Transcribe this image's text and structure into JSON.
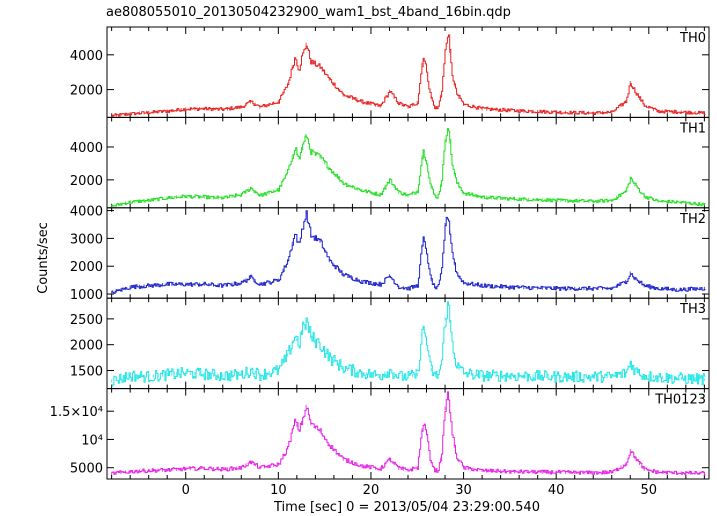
{
  "chart_data": {
    "type": "line",
    "title": "ae808055010_20130504232900_wam1_bst_4band_16bin.qdp",
    "xlabel": "Time [sec] 0 = 2013/05/04 23:29:00.540",
    "ylabel": "Counts/sec",
    "xlim": [
      -8.5,
      56.5
    ],
    "x_ticks": [
      0,
      10,
      20,
      30,
      40,
      50
    ],
    "x_tick_labels": [
      "0",
      "10",
      "20",
      "30",
      "40",
      "50"
    ],
    "panels": [
      {
        "name": "TH0",
        "color": "#e8201f",
        "ylim": [
          400,
          5600
        ],
        "y_ticks": [
          2000,
          4000
        ],
        "y_tick_labels": [
          "2000",
          "4000"
        ],
        "x": [
          -8,
          -6,
          -4,
          -2,
          0,
          2,
          4,
          6,
          7,
          8,
          10,
          11,
          11.8,
          12.2,
          12.5,
          13,
          13.5,
          14.5,
          15.5,
          17,
          19,
          21,
          22,
          23,
          24,
          25,
          25.6,
          26,
          26.3,
          26.8,
          27.2,
          27.6,
          28,
          28.3,
          28.7,
          29.2,
          30,
          32,
          35,
          40,
          44,
          46,
          47.5,
          48,
          48.5,
          49.5,
          51,
          53,
          56
        ],
        "values": [
          500,
          600,
          680,
          760,
          880,
          900,
          860,
          1000,
          1300,
          1000,
          1300,
          2300,
          3900,
          3100,
          3850,
          4600,
          3600,
          3300,
          2600,
          1700,
          1300,
          1050,
          1900,
          1200,
          1000,
          1250,
          3900,
          3100,
          1900,
          1000,
          900,
          1850,
          4200,
          5400,
          3000,
          1800,
          1150,
          900,
          800,
          700,
          650,
          700,
          1300,
          2400,
          1900,
          1100,
          750,
          720,
          650
        ]
      },
      {
        "name": "TH1",
        "color": "#22e022",
        "ylim": [
          300,
          5800
        ],
        "y_ticks": [
          2000,
          4000
        ],
        "y_tick_labels": [
          "2000",
          "4000"
        ],
        "x": [
          -8,
          -6,
          -4,
          -2,
          0,
          2,
          4,
          6,
          7,
          8,
          10,
          11,
          11.8,
          12.2,
          12.5,
          13,
          13.5,
          14.5,
          15.5,
          17,
          19,
          21,
          22,
          23,
          24,
          25,
          25.6,
          26,
          26.3,
          26.8,
          27.2,
          27.6,
          28,
          28.3,
          28.7,
          29.2,
          30,
          32,
          35,
          40,
          44,
          46,
          47.5,
          48,
          48.5,
          49.5,
          51,
          53,
          56
        ],
        "values": [
          400,
          650,
          750,
          900,
          1000,
          950,
          900,
          1100,
          1500,
          1050,
          1400,
          2500,
          4000,
          3200,
          3900,
          4700,
          3700,
          3400,
          2700,
          1800,
          1350,
          1100,
          2000,
          1250,
          1050,
          1300,
          3800,
          3100,
          1900,
          1050,
          950,
          1900,
          4400,
          5500,
          3100,
          1850,
          1200,
          950,
          850,
          750,
          700,
          750,
          1300,
          2100,
          1700,
          1000,
          700,
          650,
          500
        ]
      },
      {
        "name": "TH2",
        "color": "#1c22cc",
        "ylim": [
          850,
          4100
        ],
        "y_ticks": [
          1000,
          2000,
          3000,
          4000
        ],
        "y_tick_labels": [
          "1000",
          "2000",
          "3000",
          "4000"
        ],
        "x": [
          -8,
          -6,
          -4,
          -2,
          0,
          2,
          4,
          6,
          7,
          8,
          10,
          11,
          11.8,
          12.2,
          12.5,
          13,
          13.5,
          14.5,
          15.5,
          17,
          19,
          21,
          22,
          23,
          24,
          25,
          25.6,
          26,
          26.3,
          26.8,
          27.2,
          27.6,
          28,
          28.3,
          28.7,
          29.2,
          30,
          32,
          35,
          40,
          44,
          46,
          47.5,
          48,
          48.5,
          49.5,
          51,
          53,
          56
        ],
        "values": [
          1050,
          1250,
          1300,
          1350,
          1350,
          1350,
          1300,
          1400,
          1600,
          1350,
          1500,
          2200,
          3200,
          2700,
          3300,
          3900,
          3100,
          2900,
          2200,
          1700,
          1450,
          1350,
          1650,
          1250,
          1200,
          1300,
          3000,
          2500,
          1700,
          1250,
          1200,
          1800,
          3500,
          3850,
          2600,
          1750,
          1400,
          1300,
          1250,
          1200,
          1200,
          1200,
          1450,
          1750,
          1550,
          1300,
          1200,
          1150,
          1200
        ]
      },
      {
        "name": "TH3",
        "color": "#22e6e6",
        "ylim": [
          1150,
          2900
        ],
        "y_ticks": [
          1500,
          2000,
          2500
        ],
        "y_tick_labels": [
          "1500",
          "2000",
          "2500"
        ],
        "x": [
          -8,
          -6,
          -4,
          -2,
          0,
          2,
          4,
          6,
          7,
          8,
          10,
          11,
          11.8,
          12.2,
          12.5,
          13,
          13.5,
          14.5,
          15.5,
          17,
          19,
          21,
          22,
          23,
          24,
          25,
          25.6,
          26,
          26.3,
          26.8,
          27.2,
          27.6,
          28,
          28.3,
          28.7,
          29.2,
          30,
          32,
          35,
          40,
          44,
          46,
          47.5,
          48,
          48.5,
          49.5,
          51,
          53,
          56
        ],
        "values": [
          1300,
          1400,
          1380,
          1420,
          1450,
          1430,
          1400,
          1420,
          1500,
          1420,
          1500,
          1800,
          2200,
          2000,
          2250,
          2450,
          2150,
          2000,
          1750,
          1550,
          1450,
          1400,
          1500,
          1380,
          1380,
          1420,
          2350,
          2050,
          1600,
          1400,
          1400,
          1650,
          2500,
          2800,
          2100,
          1600,
          1450,
          1400,
          1400,
          1380,
          1380,
          1380,
          1450,
          1650,
          1500,
          1400,
          1370,
          1350,
          1330
        ]
      },
      {
        "name": "TH0123",
        "color": "#e820e8",
        "ylim": [
          3000,
          19000
        ],
        "y_ticks": [
          5000,
          10000,
          15000
        ],
        "y_tick_labels": [
          "5000",
          "10⁴",
          "1.5×10⁴"
        ],
        "x": [
          -8,
          -6,
          -4,
          -2,
          0,
          2,
          4,
          6,
          7,
          8,
          10,
          11,
          11.8,
          12.2,
          12.5,
          13,
          13.5,
          14.5,
          15.5,
          17,
          19,
          21,
          22,
          23,
          24,
          25,
          25.6,
          26,
          26.3,
          26.8,
          27.2,
          27.6,
          28,
          28.3,
          28.7,
          29.2,
          30,
          32,
          35,
          40,
          44,
          46,
          47.5,
          48,
          48.5,
          49.5,
          51,
          53,
          56
        ],
        "values": [
          4000,
          4300,
          4500,
          4600,
          4800,
          4900,
          4700,
          5000,
          6000,
          5000,
          5600,
          8500,
          13500,
          11500,
          13000,
          15800,
          12800,
          11500,
          9000,
          6500,
          5300,
          4800,
          6500,
          4900,
          4600,
          5000,
          13000,
          11000,
          7000,
          4600,
          4400,
          7200,
          15500,
          18500,
          11500,
          7000,
          5000,
          4500,
          4300,
          4200,
          4100,
          4200,
          5600,
          8000,
          6800,
          4700,
          4200,
          4100,
          4000
        ]
      }
    ]
  }
}
